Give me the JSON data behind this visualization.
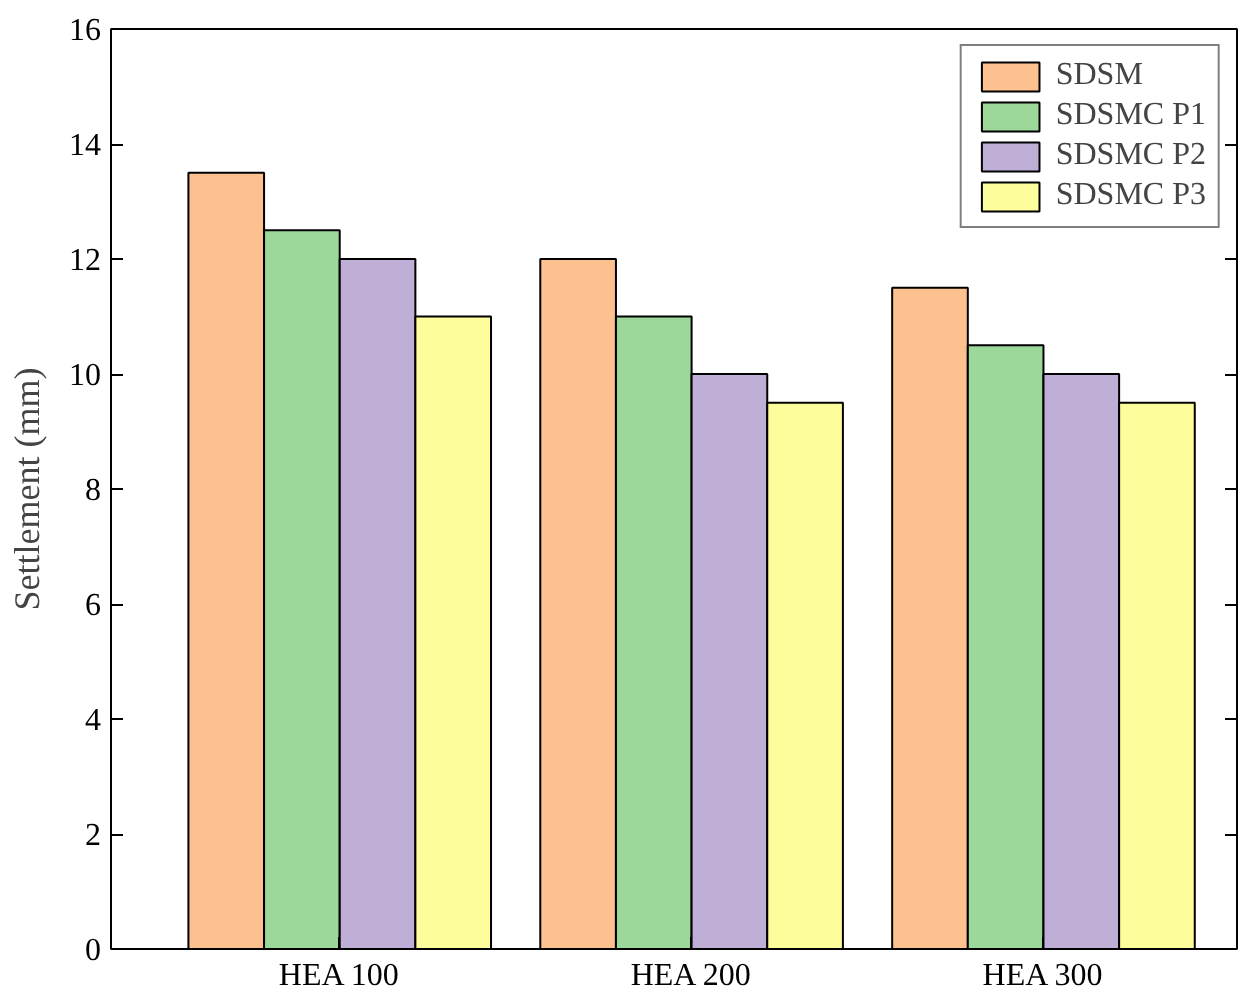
{
  "chart_data": {
    "type": "bar",
    "ylabel": "Settlement (mm)",
    "categories": [
      "HEA 100",
      "HEA 200",
      "HEA 300"
    ],
    "series": [
      {
        "name": "SDSM",
        "color": "#fdc08f",
        "values": [
          13.5,
          12,
          11.5
        ]
      },
      {
        "name": "SDSMC P1",
        "color": "#9dd89b",
        "values": [
          12.5,
          11,
          10.5
        ]
      },
      {
        "name": "SDSMC P2",
        "color": "#bfafd7",
        "values": [
          12,
          10,
          10
        ]
      },
      {
        "name": "SDSMC P3",
        "color": "#fdfd9b",
        "values": [
          11,
          9.5,
          9.5
        ]
      }
    ],
    "ylim": [
      0,
      16
    ],
    "yticks": [
      0,
      2,
      4,
      6,
      8,
      10,
      12,
      14,
      16
    ],
    "grid": false,
    "legend": "top right"
  }
}
